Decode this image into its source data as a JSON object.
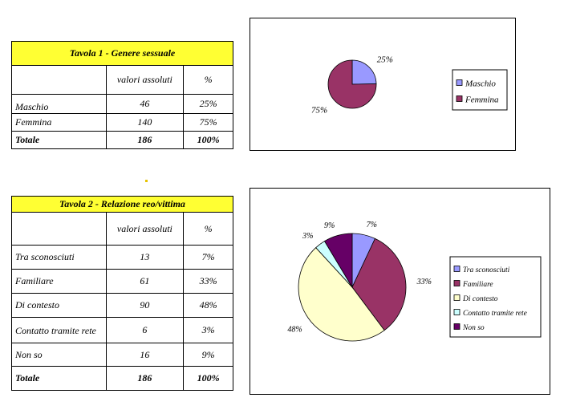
{
  "table1": {
    "title": "Tavola 1 - Genere sessuale",
    "col_abs": "valori assoluti",
    "col_pct": "%",
    "rows": [
      {
        "label": "Maschio",
        "abs": "46",
        "pct": "25%"
      },
      {
        "label": "Femmina",
        "abs": "140",
        "pct": "75%"
      }
    ],
    "total": {
      "label": "Totale",
      "abs": "186",
      "pct": "100%"
    }
  },
  "table2": {
    "title": "Tavola 2 - Relazione reo/vittima",
    "col_abs": "valori assoluti",
    "col_pct": "%",
    "rows": [
      {
        "label": "Tra sconosciuti",
        "abs": "13",
        "pct": "7%"
      },
      {
        "label": "Familiare",
        "abs": "61",
        "pct": "33%"
      },
      {
        "label": "Di contesto",
        "abs": "90",
        "pct": "48%"
      },
      {
        "label": "Contatto tramite rete",
        "abs": "6",
        "pct": "3%"
      },
      {
        "label": "Non so",
        "abs": "16",
        "pct": "9%"
      }
    ],
    "total": {
      "label": "Totale",
      "abs": "186",
      "pct": "100%"
    }
  },
  "chart_data": [
    {
      "type": "pie",
      "categories": [
        "Maschio",
        "Femmina"
      ],
      "values": [
        46,
        140
      ],
      "data_labels": [
        "25%",
        "75%"
      ],
      "colors": [
        "#9999ff",
        "#993366"
      ],
      "legend": "right"
    },
    {
      "type": "pie",
      "categories": [
        "Tra sconosciuti",
        "Familiare",
        "Di contesto",
        "Contatto tramite rete",
        "Non so"
      ],
      "values": [
        13,
        61,
        90,
        6,
        16
      ],
      "data_labels": [
        "7%",
        "33%",
        "48%",
        "3%",
        "9%"
      ],
      "colors": [
        "#9999ff",
        "#993366",
        "#ffffcc",
        "#ccffff",
        "#660066"
      ],
      "legend": "right"
    }
  ]
}
